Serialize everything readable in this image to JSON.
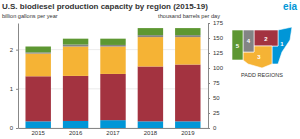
{
  "chart_data": {
    "type": "bar",
    "stacked": true,
    "title": "U.S. biodiesel production capacity by region (2015-19)",
    "y_label": "billion gallons per year",
    "y2_label": "thousand barrels per day",
    "legend_title": "PADD REGIONS",
    "annotations": [
      "eia"
    ],
    "categories": [
      "2015",
      "2016",
      "2017",
      "2018",
      "2019"
    ],
    "series": [
      {
        "name": "1",
        "color": "#0096d7",
        "values": [
          0.17,
          0.18,
          0.2,
          0.17,
          0.17
        ]
      },
      {
        "name": "2",
        "color": "#a33340",
        "values": [
          1.15,
          1.15,
          1.18,
          1.4,
          1.45
        ]
      },
      {
        "name": "3",
        "color": "#f5b335",
        "values": [
          0.58,
          0.75,
          0.7,
          0.75,
          0.7
        ]
      },
      {
        "name": "4",
        "color": "#838485",
        "values": [
          0.03,
          0.05,
          0.04,
          0.05,
          0.05
        ]
      },
      {
        "name": "5",
        "color": "#5d9732",
        "values": [
          0.15,
          0.15,
          0.16,
          0.18,
          0.18
        ]
      }
    ],
    "ylim": [
      0,
      2.68
    ],
    "yticks": [
      0,
      1,
      2
    ],
    "y2lim": [
      0,
      175
    ],
    "y2ticks": [
      0,
      25,
      50,
      75,
      100,
      125,
      150,
      175
    ],
    "grid": true
  }
}
